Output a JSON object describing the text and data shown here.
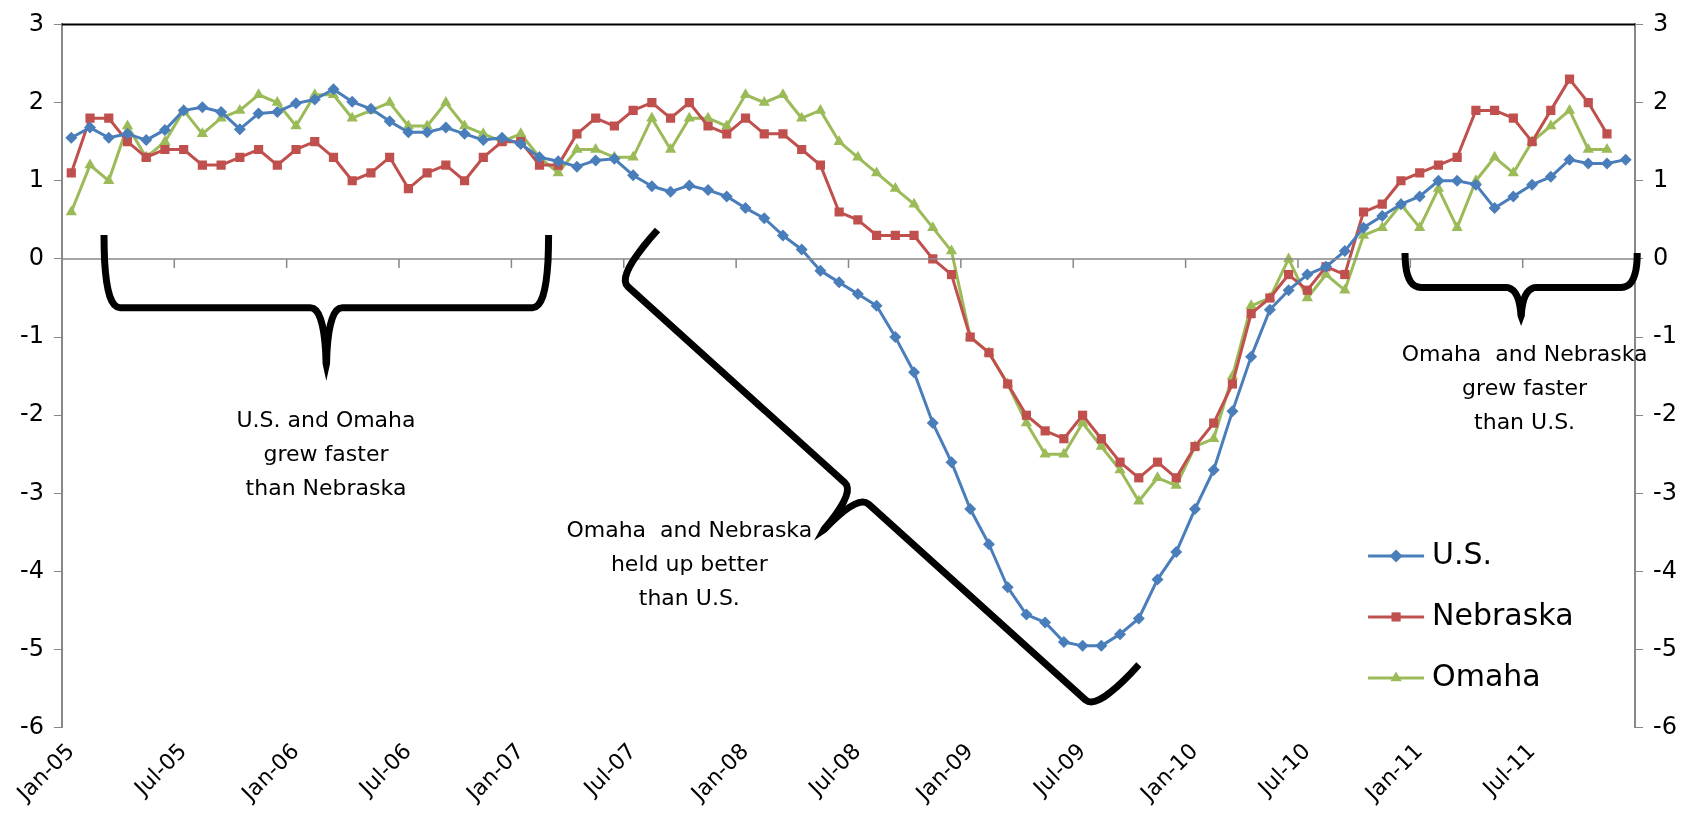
{
  "chart_data": {
    "type": "line",
    "categories": [
      "Jan-05",
      null,
      null,
      null,
      null,
      null,
      "Jul-05",
      null,
      null,
      null,
      null,
      null,
      "Jan-06",
      null,
      null,
      null,
      null,
      null,
      "Jul-06",
      null,
      null,
      null,
      null,
      null,
      "Jan-07",
      null,
      null,
      null,
      null,
      null,
      "Jul-07",
      null,
      null,
      null,
      null,
      null,
      "Jan-08",
      null,
      null,
      null,
      null,
      null,
      "Jul-08",
      null,
      null,
      null,
      null,
      null,
      "Jan-09",
      null,
      null,
      null,
      null,
      null,
      "Jul-09",
      null,
      null,
      null,
      null,
      null,
      "Jan-10",
      null,
      null,
      null,
      null,
      null,
      "Jul-10",
      null,
      null,
      null,
      null,
      null,
      "Jan-11",
      null,
      null,
      null,
      null,
      null,
      "Jul-11",
      null,
      null,
      null,
      null,
      null
    ],
    "series": [
      {
        "name": "U.S.",
        "color": "#4a7ebb",
        "marker": "diamond",
        "values": [
          1.55,
          1.68,
          1.55,
          1.6,
          1.52,
          1.65,
          1.9,
          1.94,
          1.88,
          1.66,
          1.86,
          1.88,
          1.99,
          2.04,
          2.17,
          2.01,
          1.92,
          1.76,
          1.62,
          1.62,
          1.68,
          1.6,
          1.52,
          1.55,
          1.47,
          1.3,
          1.25,
          1.18,
          1.26,
          1.28,
          1.07,
          0.93,
          0.86,
          0.94,
          0.88,
          0.8,
          0.65,
          0.52,
          0.3,
          0.12,
          -0.15,
          -0.3,
          -0.45,
          -0.6,
          -1.0,
          -1.45,
          -2.1,
          -2.6,
          -3.2,
          -3.65,
          -4.2,
          -4.55,
          -4.65,
          -4.9,
          -4.95,
          -4.95,
          -4.8,
          -4.6,
          -4.1,
          -3.75,
          -3.2,
          -2.7,
          -1.95,
          -1.25,
          -0.65,
          -0.4,
          -0.2,
          -0.1,
          0.1,
          0.4,
          0.55,
          0.7,
          0.8,
          1.0,
          1.0,
          0.95,
          0.65,
          0.8,
          0.95,
          1.05,
          1.27,
          1.22,
          1.22,
          1.27
        ]
      },
      {
        "name": "Nebraska",
        "color": "#c0504d",
        "marker": "square",
        "values": [
          1.1,
          1.8,
          1.8,
          1.5,
          1.3,
          1.4,
          1.4,
          1.2,
          1.2,
          1.3,
          1.4,
          1.2,
          1.4,
          1.5,
          1.3,
          1.0,
          1.1,
          1.3,
          0.9,
          1.1,
          1.2,
          1.0,
          1.3,
          1.5,
          1.5,
          1.2,
          1.2,
          1.6,
          1.8,
          1.7,
          1.9,
          2.0,
          1.8,
          2.0,
          1.7,
          1.6,
          1.8,
          1.6,
          1.6,
          1.4,
          1.2,
          0.6,
          0.5,
          0.3,
          0.3,
          0.3,
          0.0,
          -0.2,
          -1.0,
          -1.2,
          -1.6,
          -2.0,
          -2.2,
          -2.3,
          -2.0,
          -2.3,
          -2.6,
          -2.8,
          -2.6,
          -2.8,
          -2.4,
          -2.1,
          -1.6,
          -0.7,
          -0.5,
          -0.2,
          -0.4,
          -0.1,
          -0.2,
          0.6,
          0.7,
          1.0,
          1.1,
          1.2,
          1.3,
          1.9,
          1.9,
          1.8,
          1.5,
          1.9,
          2.3,
          2.0,
          1.6,
          null
        ]
      },
      {
        "name": "Omaha",
        "color": "#9bbb59",
        "marker": "triangle",
        "values": [
          0.6,
          1.2,
          1.0,
          1.7,
          1.3,
          1.5,
          1.9,
          1.6,
          1.8,
          1.9,
          2.1,
          2.0,
          1.7,
          2.1,
          2.1,
          1.8,
          1.9,
          2.0,
          1.7,
          1.7,
          2.0,
          1.7,
          1.6,
          1.5,
          1.6,
          1.3,
          1.1,
          1.4,
          1.4,
          1.3,
          1.3,
          1.8,
          1.4,
          1.8,
          1.8,
          1.7,
          2.1,
          2.0,
          2.1,
          1.8,
          1.9,
          1.5,
          1.3,
          1.1,
          0.9,
          0.7,
          0.4,
          0.1,
          -1.0,
          -1.2,
          -1.6,
          -2.1,
          -2.5,
          -2.5,
          -2.1,
          -2.4,
          -2.7,
          -3.1,
          -2.8,
          -2.9,
          -2.4,
          -2.3,
          -1.5,
          -0.6,
          -0.5,
          0.0,
          -0.5,
          -0.2,
          -0.4,
          0.3,
          0.4,
          0.7,
          0.4,
          0.9,
          0.4,
          1.0,
          1.3,
          1.1,
          1.5,
          1.7,
          1.9,
          1.4,
          1.4,
          null
        ]
      }
    ],
    "ylim": [
      -6,
      3
    ],
    "yticks": [
      -6,
      -5,
      -4,
      -3,
      -2,
      -1,
      0,
      1,
      2,
      3
    ],
    "y2lim": [
      -6,
      3
    ],
    "y2ticks": [
      -6,
      -5,
      -4,
      -3,
      -2,
      -1,
      0,
      1,
      2,
      3
    ],
    "legend": "bottom right",
    "annotations": [
      "U.S. and Omaha\ngrew faster\nthan Nebraska",
      "Omaha  and Nebraska\nheld up better\nthan U.S.",
      "Omaha  and Nebraska\ngrew faster\nthan U.S."
    ]
  }
}
